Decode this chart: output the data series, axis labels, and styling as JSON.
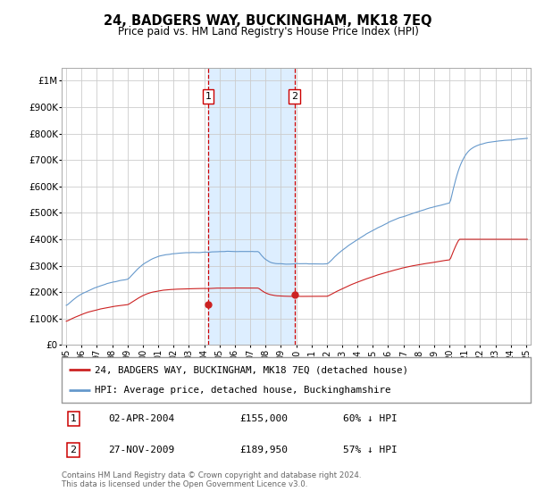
{
  "title": "24, BADGERS WAY, BUCKINGHAM, MK18 7EQ",
  "subtitle": "Price paid vs. HM Land Registry's House Price Index (HPI)",
  "footer": "Contains HM Land Registry data © Crown copyright and database right 2024.\nThis data is licensed under the Open Government Licence v3.0.",
  "legend_line1": "24, BADGERS WAY, BUCKINGHAM, MK18 7EQ (detached house)",
  "legend_line2": "HPI: Average price, detached house, Buckinghamshire",
  "sale1_date": "02-APR-2004",
  "sale1_price": "£155,000",
  "sale1_hpi": "60% ↓ HPI",
  "sale2_date": "27-NOV-2009",
  "sale2_price": "£189,950",
  "sale2_hpi": "57% ↓ HPI",
  "hpi_color": "#6699cc",
  "price_color": "#cc2222",
  "sale_marker_color_red": "#cc2222",
  "vline_color": "#cc0000",
  "shade_color": "#ddeeff",
  "background_color": "#ffffff",
  "grid_color": "#cccccc",
  "ylim": [
    0,
    1050000
  ],
  "yticks": [
    0,
    100000,
    200000,
    300000,
    400000,
    500000,
    600000,
    700000,
    800000,
    900000,
    1000000
  ],
  "ytick_labels": [
    "£0",
    "£100K",
    "£200K",
    "£300K",
    "£400K",
    "£500K",
    "£600K",
    "£700K",
    "£800K",
    "£900K",
    "£1M"
  ],
  "sale1_x": 2004.25,
  "sale1_y": 155000,
  "sale2_x": 2009.9,
  "sale2_y": 189950,
  "xlim_left": 1994.7,
  "xlim_right": 2025.3
}
